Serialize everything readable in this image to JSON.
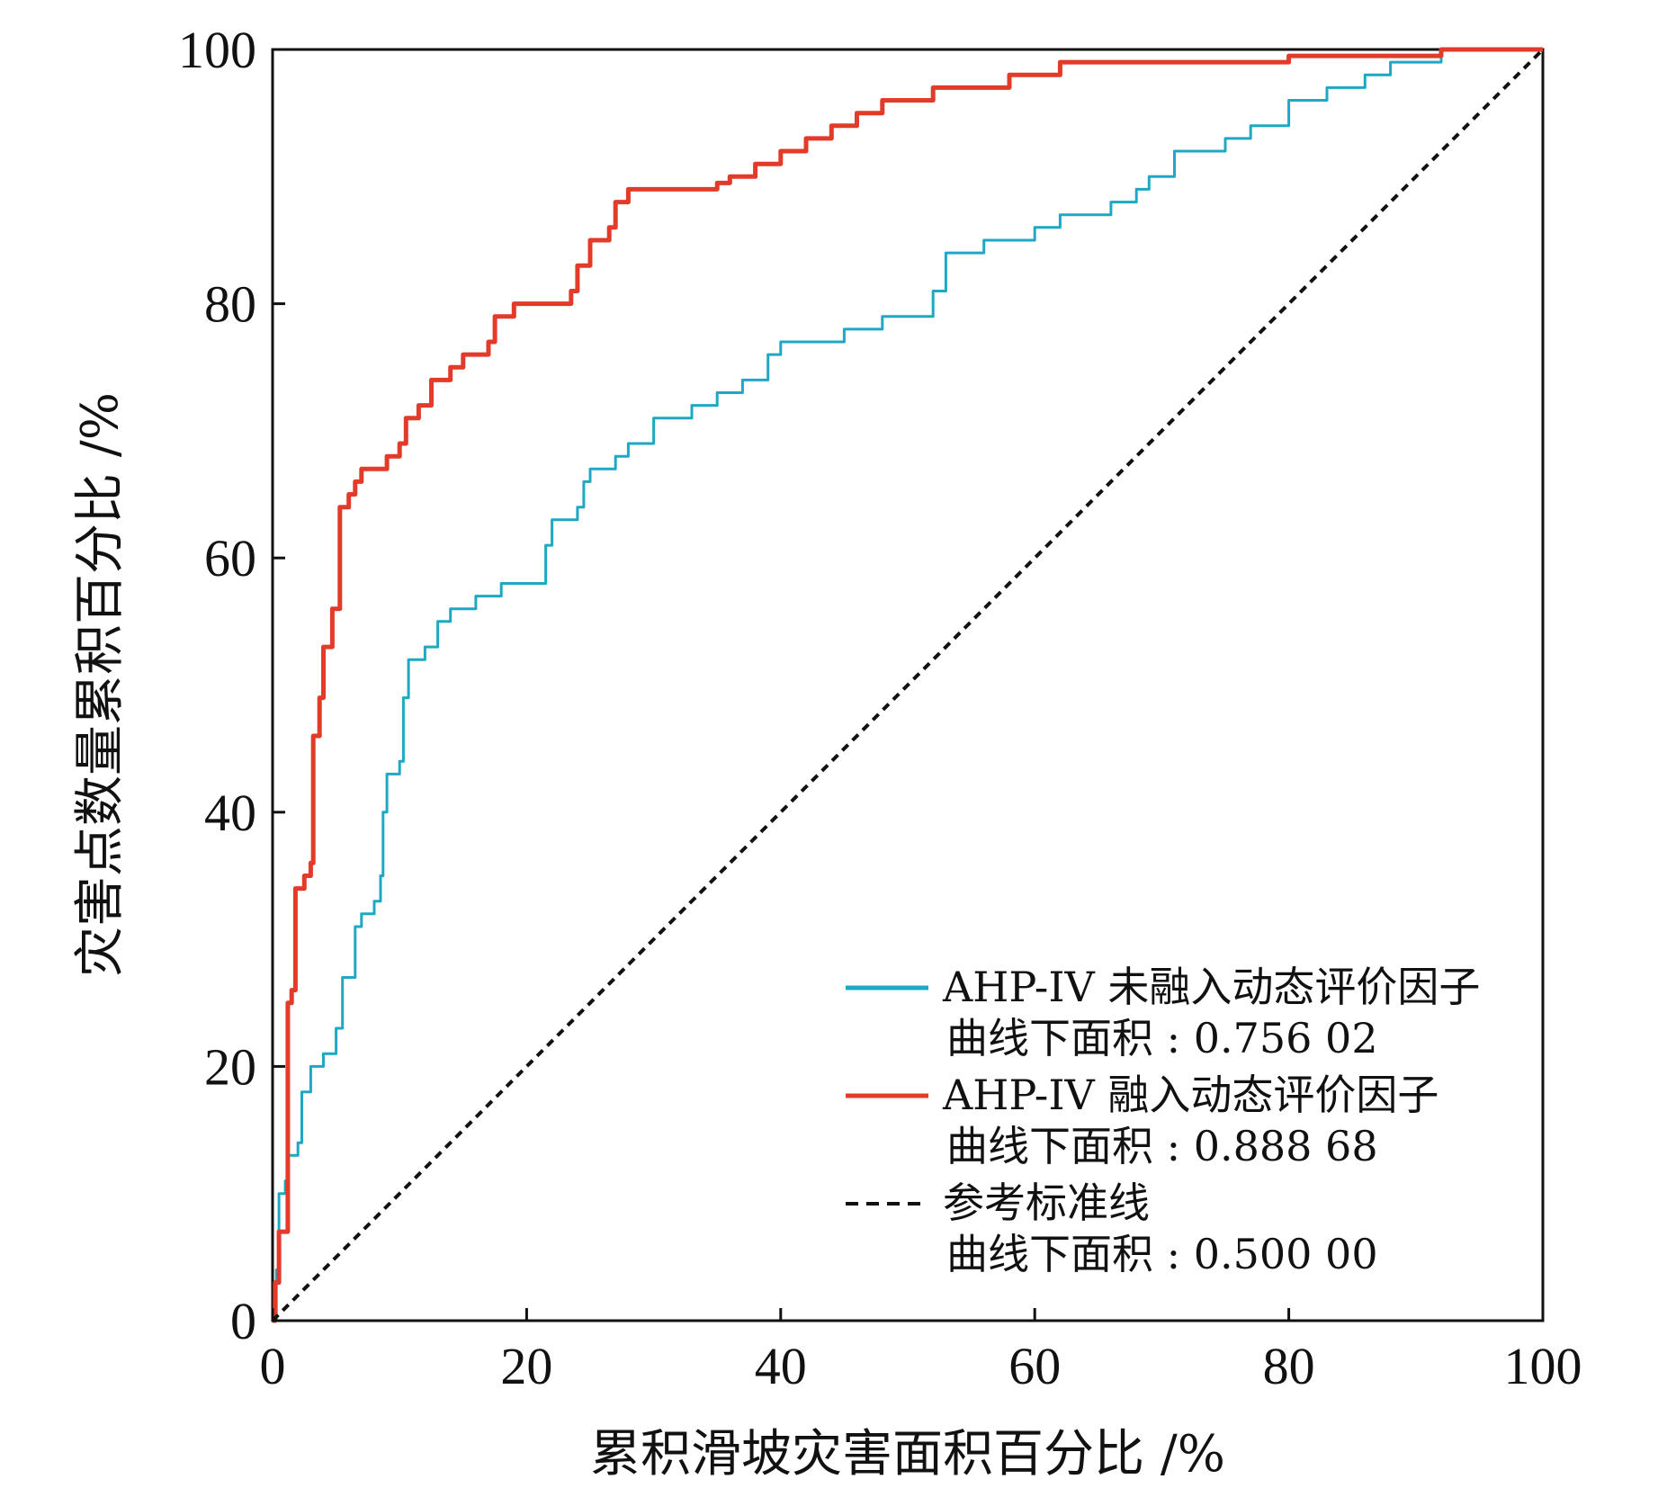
{
  "chart_data": {
    "type": "line",
    "xlabel": "累积滑坡灾害面积百分比 /%",
    "ylabel": "灾害点数量累积百分比 /%",
    "xlim": [
      0,
      100
    ],
    "ylim": [
      0,
      100
    ],
    "xticks": [
      0,
      20,
      40,
      60,
      80,
      100
    ],
    "yticks": [
      0,
      20,
      40,
      60,
      80,
      100
    ],
    "grid": false,
    "legend_position": "bottom-right",
    "series": [
      {
        "name": "AHP-IV 未融入动态评价因子",
        "auc_label": "曲线下面积 : 0.756 02",
        "color": "#1fa8c4",
        "style": "solid",
        "points": [
          [
            0,
            0
          ],
          [
            0.3,
            4
          ],
          [
            0.5,
            10
          ],
          [
            1,
            11
          ],
          [
            1.2,
            13
          ],
          [
            2,
            14
          ],
          [
            2.3,
            18
          ],
          [
            3,
            20
          ],
          [
            4,
            21
          ],
          [
            5,
            23
          ],
          [
            5.5,
            27
          ],
          [
            6.5,
            31
          ],
          [
            7,
            32
          ],
          [
            8,
            33
          ],
          [
            8.5,
            35
          ],
          [
            8.7,
            40
          ],
          [
            9,
            43
          ],
          [
            10,
            44
          ],
          [
            10.3,
            49
          ],
          [
            10.7,
            52
          ],
          [
            12,
            53
          ],
          [
            13,
            55
          ],
          [
            14,
            56
          ],
          [
            16,
            57
          ],
          [
            18,
            58
          ],
          [
            21,
            58
          ],
          [
            21.5,
            61
          ],
          [
            22,
            63
          ],
          [
            24,
            64
          ],
          [
            24.5,
            66
          ],
          [
            25,
            67
          ],
          [
            27,
            68
          ],
          [
            28,
            69
          ],
          [
            30,
            71
          ],
          [
            33,
            72
          ],
          [
            35,
            73
          ],
          [
            37,
            74
          ],
          [
            39,
            76
          ],
          [
            40,
            77
          ],
          [
            42,
            77
          ],
          [
            45,
            78
          ],
          [
            48,
            79
          ],
          [
            52,
            81
          ],
          [
            53,
            84
          ],
          [
            56,
            85
          ],
          [
            60,
            86
          ],
          [
            62,
            87
          ],
          [
            66,
            88
          ],
          [
            68,
            89
          ],
          [
            69,
            90
          ],
          [
            71,
            92
          ],
          [
            75,
            93
          ],
          [
            77,
            94
          ],
          [
            80,
            96
          ],
          [
            83,
            97
          ],
          [
            86,
            98
          ],
          [
            88,
            99
          ],
          [
            92,
            100
          ],
          [
            100,
            100
          ]
        ]
      },
      {
        "name": "AHP-IV 融入动态评价因子",
        "auc_label": "曲线下面积 : 0.888 68",
        "color": "#e23b2a",
        "style": "solid",
        "points": [
          [
            0,
            0
          ],
          [
            0.2,
            3
          ],
          [
            0.5,
            7
          ],
          [
            1,
            7
          ],
          [
            1.2,
            25
          ],
          [
            1.5,
            26
          ],
          [
            1.8,
            34
          ],
          [
            2.5,
            35
          ],
          [
            3,
            36
          ],
          [
            3.2,
            46
          ],
          [
            3.7,
            49
          ],
          [
            4,
            53
          ],
          [
            4.7,
            56
          ],
          [
            5.3,
            64
          ],
          [
            6,
            65
          ],
          [
            6.5,
            66
          ],
          [
            7,
            67
          ],
          [
            8,
            67
          ],
          [
            9,
            68
          ],
          [
            10,
            69
          ],
          [
            10.5,
            71
          ],
          [
            11.5,
            72
          ],
          [
            12.5,
            74
          ],
          [
            14,
            75
          ],
          [
            15,
            76
          ],
          [
            17,
            77
          ],
          [
            17.5,
            79
          ],
          [
            19,
            80
          ],
          [
            23,
            80
          ],
          [
            23.5,
            81
          ],
          [
            24,
            83
          ],
          [
            25,
            85
          ],
          [
            26.5,
            86
          ],
          [
            27,
            88
          ],
          [
            28,
            89
          ],
          [
            30,
            89
          ],
          [
            35,
            89.5
          ],
          [
            36,
            90
          ],
          [
            38,
            91
          ],
          [
            40,
            92
          ],
          [
            42,
            93
          ],
          [
            44,
            94
          ],
          [
            46,
            95
          ],
          [
            48,
            96
          ],
          [
            52,
            97
          ],
          [
            58,
            98
          ],
          [
            61,
            98
          ],
          [
            62,
            99
          ],
          [
            72,
            99
          ],
          [
            80,
            99.5
          ],
          [
            92,
            100
          ],
          [
            100,
            100
          ]
        ]
      },
      {
        "name": "参考标准线",
        "auc_label": "曲线下面积 : 0.500 00",
        "color": "#111111",
        "style": "dashed",
        "points": [
          [
            0,
            0
          ],
          [
            100,
            100
          ]
        ]
      }
    ]
  }
}
